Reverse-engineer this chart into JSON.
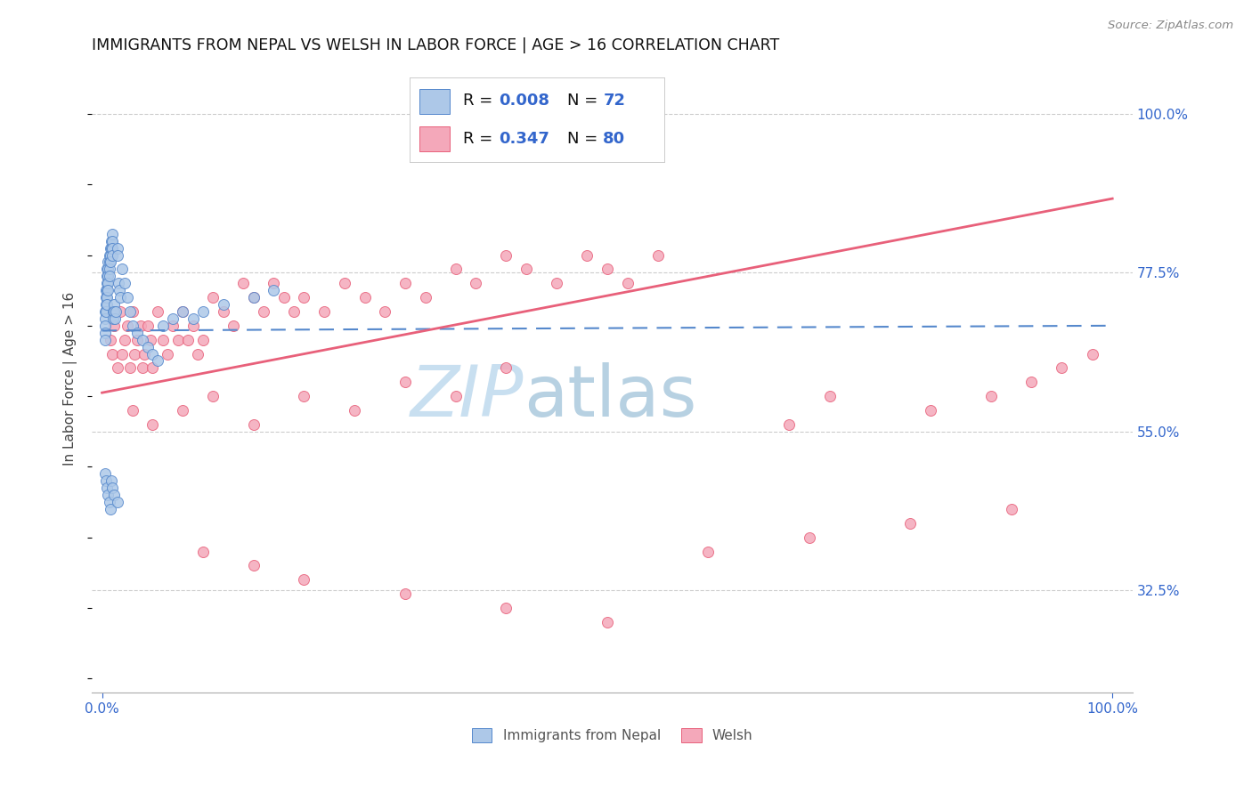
{
  "title": "IMMIGRANTS FROM NEPAL VS WELSH IN LABOR FORCE | AGE > 16 CORRELATION CHART",
  "source": "Source: ZipAtlas.com",
  "ylabel": "In Labor Force | Age > 16",
  "ytick_labels": [
    "32.5%",
    "55.0%",
    "77.5%",
    "100.0%"
  ],
  "ytick_values": [
    0.325,
    0.55,
    0.775,
    1.0
  ],
  "xlim": [
    -0.01,
    1.02
  ],
  "ylim": [
    0.18,
    1.07
  ],
  "nepal_fill": "#adc8e8",
  "nepal_edge": "#5588cc",
  "welsh_fill": "#f4a8ba",
  "welsh_edge": "#e8607a",
  "nepal_line_color": "#5588cc",
  "welsh_line_color": "#e8607a",
  "nepal_R": 0.008,
  "nepal_N": 72,
  "welsh_R": 0.347,
  "welsh_N": 80,
  "grid_color": "#cccccc",
  "nepal_x": [
    0.003,
    0.003,
    0.003,
    0.003,
    0.003,
    0.004,
    0.004,
    0.004,
    0.004,
    0.005,
    0.005,
    0.005,
    0.005,
    0.005,
    0.005,
    0.006,
    0.006,
    0.006,
    0.006,
    0.006,
    0.007,
    0.007,
    0.007,
    0.007,
    0.008,
    0.008,
    0.008,
    0.009,
    0.009,
    0.01,
    0.01,
    0.01,
    0.01,
    0.011,
    0.011,
    0.012,
    0.012,
    0.013,
    0.014,
    0.015,
    0.015,
    0.016,
    0.017,
    0.018,
    0.02,
    0.022,
    0.025,
    0.028,
    0.03,
    0.035,
    0.04,
    0.045,
    0.05,
    0.055,
    0.06,
    0.07,
    0.08,
    0.09,
    0.1,
    0.12,
    0.15,
    0.17,
    0.003,
    0.004,
    0.005,
    0.006,
    0.007,
    0.008,
    0.009,
    0.01,
    0.012,
    0.015
  ],
  "nepal_y": [
    0.72,
    0.71,
    0.7,
    0.69,
    0.68,
    0.75,
    0.74,
    0.73,
    0.72,
    0.78,
    0.77,
    0.76,
    0.75,
    0.74,
    0.73,
    0.79,
    0.78,
    0.77,
    0.76,
    0.75,
    0.8,
    0.79,
    0.78,
    0.77,
    0.81,
    0.8,
    0.79,
    0.82,
    0.81,
    0.83,
    0.82,
    0.81,
    0.8,
    0.72,
    0.71,
    0.73,
    0.72,
    0.71,
    0.72,
    0.81,
    0.8,
    0.76,
    0.75,
    0.74,
    0.78,
    0.76,
    0.74,
    0.72,
    0.7,
    0.69,
    0.68,
    0.67,
    0.66,
    0.65,
    0.7,
    0.71,
    0.72,
    0.71,
    0.72,
    0.73,
    0.74,
    0.75,
    0.49,
    0.48,
    0.47,
    0.46,
    0.45,
    0.44,
    0.48,
    0.47,
    0.46,
    0.45
  ],
  "welsh_x": [
    0.008,
    0.01,
    0.012,
    0.015,
    0.018,
    0.02,
    0.022,
    0.025,
    0.028,
    0.03,
    0.032,
    0.035,
    0.038,
    0.04,
    0.042,
    0.045,
    0.048,
    0.05,
    0.055,
    0.06,
    0.065,
    0.07,
    0.075,
    0.08,
    0.085,
    0.09,
    0.095,
    0.1,
    0.11,
    0.12,
    0.13,
    0.14,
    0.15,
    0.16,
    0.17,
    0.18,
    0.19,
    0.2,
    0.22,
    0.24,
    0.26,
    0.28,
    0.3,
    0.32,
    0.35,
    0.37,
    0.4,
    0.42,
    0.45,
    0.48,
    0.5,
    0.52,
    0.55,
    0.03,
    0.05,
    0.08,
    0.11,
    0.15,
    0.2,
    0.25,
    0.3,
    0.35,
    0.4,
    0.68,
    0.72,
    0.82,
    0.88,
    0.92,
    0.95,
    0.98,
    0.1,
    0.15,
    0.2,
    0.3,
    0.4,
    0.5,
    0.6,
    0.7,
    0.8,
    0.9
  ],
  "welsh_y": [
    0.68,
    0.66,
    0.7,
    0.64,
    0.72,
    0.66,
    0.68,
    0.7,
    0.64,
    0.72,
    0.66,
    0.68,
    0.7,
    0.64,
    0.66,
    0.7,
    0.68,
    0.64,
    0.72,
    0.68,
    0.66,
    0.7,
    0.68,
    0.72,
    0.68,
    0.7,
    0.66,
    0.68,
    0.74,
    0.72,
    0.7,
    0.76,
    0.74,
    0.72,
    0.76,
    0.74,
    0.72,
    0.74,
    0.72,
    0.76,
    0.74,
    0.72,
    0.76,
    0.74,
    0.78,
    0.76,
    0.8,
    0.78,
    0.76,
    0.8,
    0.78,
    0.76,
    0.8,
    0.58,
    0.56,
    0.58,
    0.6,
    0.56,
    0.6,
    0.58,
    0.62,
    0.6,
    0.64,
    0.56,
    0.6,
    0.58,
    0.6,
    0.62,
    0.64,
    0.66,
    0.38,
    0.36,
    0.34,
    0.32,
    0.3,
    0.28,
    0.38,
    0.4,
    0.42,
    0.44
  ],
  "nepal_line_x0": 0.0,
  "nepal_line_x1": 1.0,
  "nepal_line_y0": 0.693,
  "nepal_line_y1": 0.7,
  "welsh_line_x0": 0.0,
  "welsh_line_x1": 1.0,
  "welsh_line_y0": 0.605,
  "welsh_line_y1": 0.88
}
